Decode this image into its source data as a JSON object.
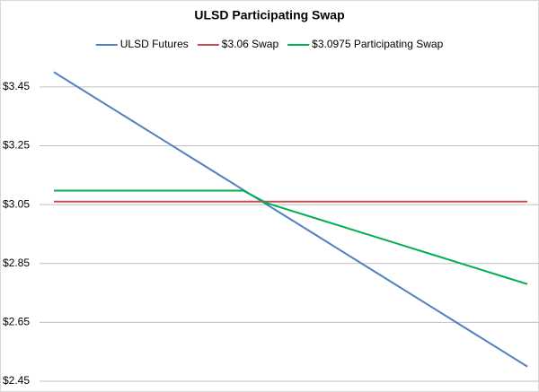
{
  "chart_data": {
    "type": "line",
    "title": "ULSD Participating Swap",
    "categories": [
      null,
      null,
      null,
      null,
      null,
      null,
      null,
      null,
      null,
      null,
      null,
      null,
      null,
      null,
      null,
      null,
      null,
      null,
      null,
      null,
      null
    ],
    "series": [
      {
        "name": "ULSD Futures",
        "color": "#4f81bd",
        "values": [
          3.5,
          3.45,
          3.4,
          3.35,
          3.3,
          3.25,
          3.2,
          3.15,
          3.1,
          3.05,
          3.0,
          2.95,
          2.9,
          2.85,
          2.8,
          2.75,
          2.7,
          2.65,
          2.6,
          2.55,
          2.5
        ]
      },
      {
        "name": "$3.06 Swap",
        "color": "#c0504d",
        "values": [
          3.06,
          3.06,
          3.06,
          3.06,
          3.06,
          3.06,
          3.06,
          3.06,
          3.06,
          3.06,
          3.06,
          3.06,
          3.06,
          3.06,
          3.06,
          3.06,
          3.06,
          3.06,
          3.06,
          3.06,
          3.06
        ]
      },
      {
        "name": "$3.0975 Participating Swap",
        "color": "#00b050",
        "values": [
          3.0975,
          3.0975,
          3.0975,
          3.0975,
          3.0975,
          3.0975,
          3.0975,
          3.0975,
          3.0975,
          3.055,
          3.03,
          3.005,
          2.98,
          2.955,
          2.93,
          2.905,
          2.88,
          2.855,
          2.83,
          2.805,
          2.78
        ]
      }
    ],
    "ylim": [
      2.45,
      3.55
    ],
    "yticks": [
      {
        "value": 2.45,
        "label": "$2.45"
      },
      {
        "value": 2.65,
        "label": "$2.65"
      },
      {
        "value": 2.85,
        "label": "$2.85"
      },
      {
        "value": 3.05,
        "label": "$3.05"
      },
      {
        "value": 3.25,
        "label": "$3.25"
      },
      {
        "value": 3.45,
        "label": "$3.45"
      }
    ],
    "grid": true,
    "legend": "top"
  }
}
